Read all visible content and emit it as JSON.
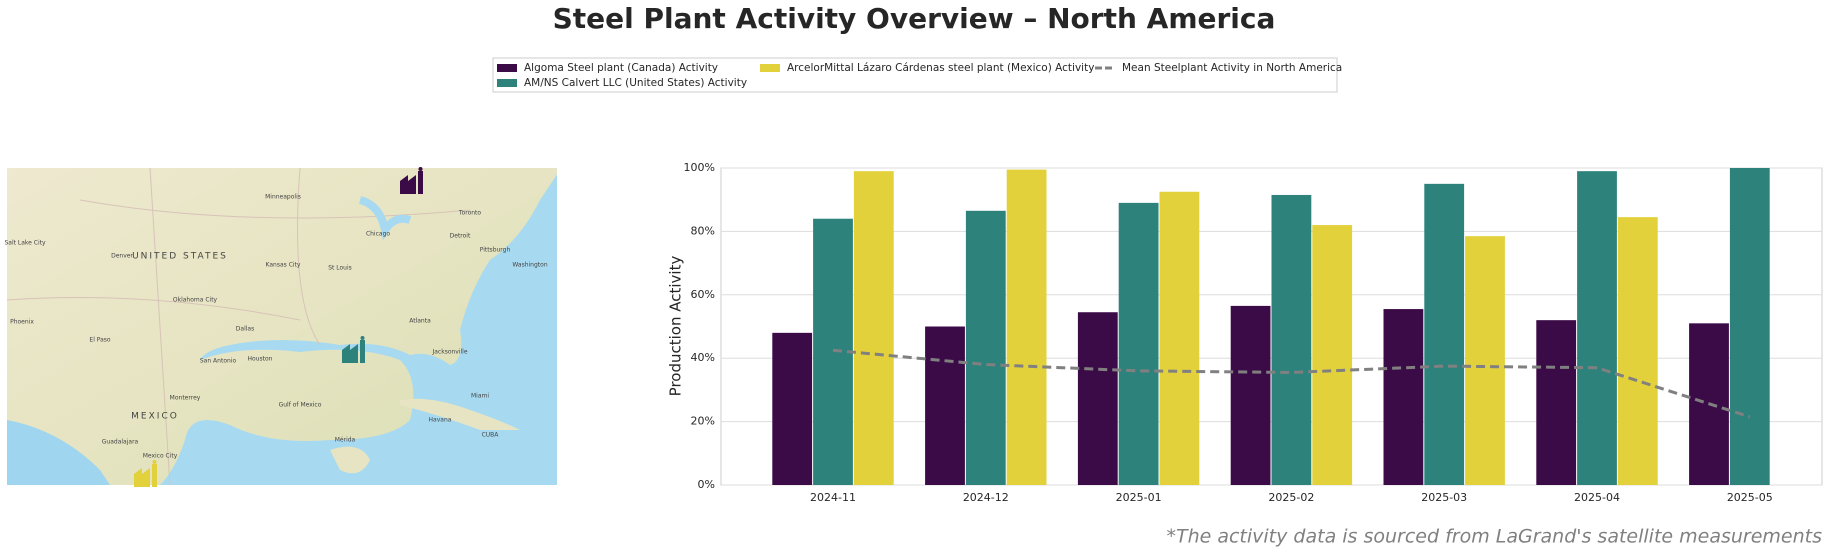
{
  "chart_data": {
    "type": "bar",
    "title": "Steel Plant Activity Overview – North America",
    "ylabel": "Production Activity",
    "footnote": "*The activity data is sourced from LaGrand's satellite measurements",
    "categories": [
      "2024-11",
      "2024-12",
      "2025-01",
      "2025-02",
      "2025-03",
      "2025-04",
      "2025-05"
    ],
    "series": [
      {
        "name": "Algoma Steel plant (Canada) Activity",
        "color": "#3b0b47",
        "values": [
          48,
          50,
          54.5,
          56.5,
          55.5,
          52,
          51
        ]
      },
      {
        "name": "AM/NS Calvert LLC (United States) Activity",
        "color": "#2d827c",
        "values": [
          84,
          86.5,
          89,
          91.5,
          95,
          99,
          100
        ]
      },
      {
        "name": "ArcelorMittal Lázaro Cárdenas steel plant (Mexico) Activity",
        "color": "#e2d13b",
        "values": [
          99,
          99.5,
          92.5,
          82,
          78.5,
          84.5,
          null
        ]
      },
      {
        "name": "Mean Steelplant Activity in North America",
        "type": "line",
        "color": "#808080",
        "dashed": true,
        "values": [
          42.5,
          38,
          36,
          35.5,
          37.5,
          37,
          21.5
        ]
      }
    ],
    "ylim": [
      0,
      100
    ],
    "yticks": [
      {
        "value": 0,
        "label": "0%"
      },
      {
        "value": 20,
        "label": "20%"
      },
      {
        "value": 40,
        "label": "40%"
      },
      {
        "value": 60,
        "label": "60%"
      },
      {
        "value": 80,
        "label": "80%"
      },
      {
        "value": 100,
        "label": "100%"
      }
    ],
    "grid": true,
    "legend": "top",
    "map": {
      "labels": [
        "UNITED STATES",
        "MEXICO",
        "Minneapolis",
        "Chicago",
        "Toronto",
        "Detroit",
        "Denver",
        "Kansas City",
        "St Louis",
        "Pittsburgh",
        "Washington",
        "Oklahoma City",
        "Dallas",
        "Houston",
        "San Antonio",
        "Atlanta",
        "Jacksonville",
        "Miami",
        "Monterrey",
        "Mexico City",
        "Guadalajara",
        "Havana",
        "Salt Lake City",
        "El Paso",
        "Phoenix",
        "Gulf of Mexico",
        "CUBA",
        "Mérida"
      ]
    }
  }
}
